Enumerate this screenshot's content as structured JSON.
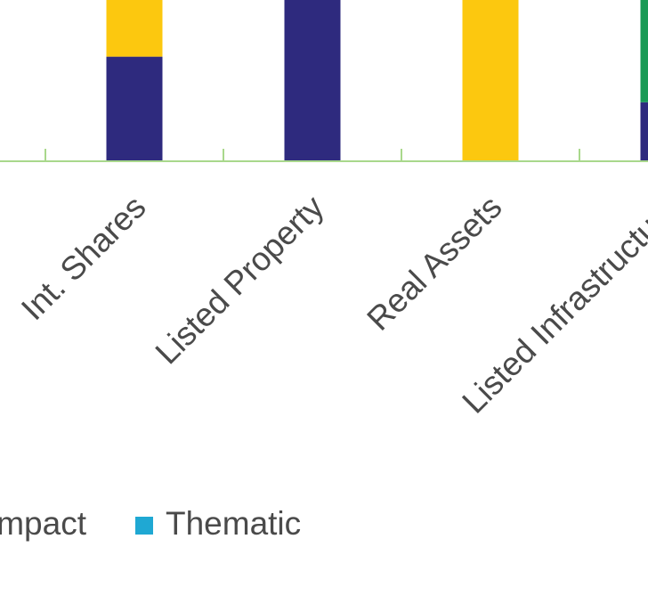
{
  "chart_data": {
    "type": "stacked_bar",
    "categories": [
      "Int. Shares",
      "Listed Property",
      "Real Assets",
      "Listed Infrastructure"
    ],
    "series": [
      {
        "color": "#2e2a7e",
        "values": [
          39,
          100,
          0,
          22
        ]
      },
      {
        "color": "#fcc80f",
        "values": [
          61,
          0,
          100,
          0
        ]
      },
      {
        "color": "#1a9a55",
        "values": [
          0,
          0,
          0,
          78
        ]
      }
    ],
    "ylim": [
      0,
      100
    ],
    "legend": [
      {
        "name": "Impact"
      },
      {
        "name": "Thematic",
        "color": "#1fa8d3"
      }
    ]
  }
}
